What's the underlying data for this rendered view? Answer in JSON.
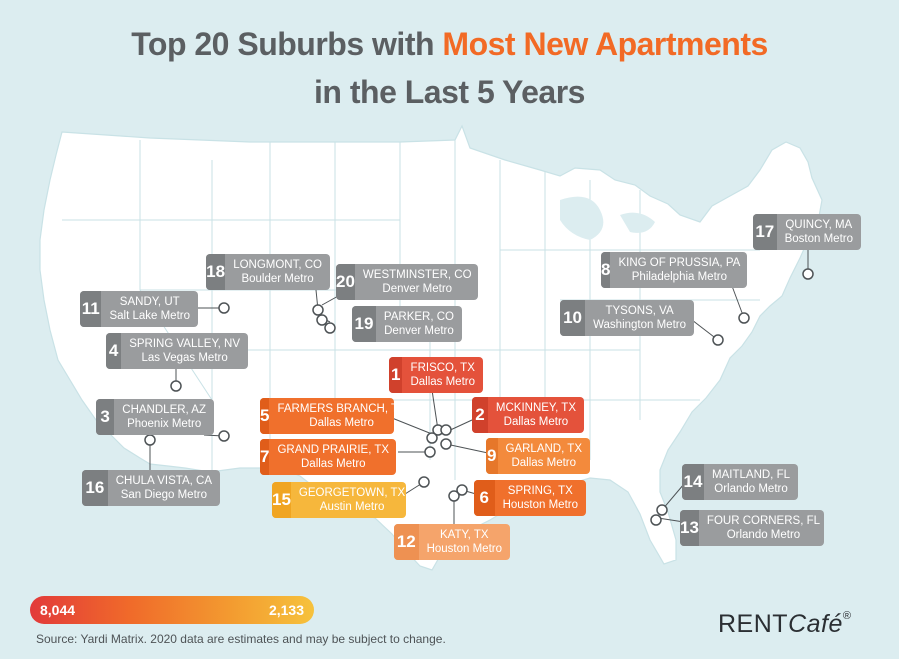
{
  "title": {
    "line1_prefix": "Top 20 Suburbs with ",
    "line1_highlight": "Most New Apartments",
    "line2": "in the Last 5 Years"
  },
  "labels": [
    {
      "rank": "1",
      "city": "FRISCO, TX",
      "metro": "Dallas Metro",
      "tier": "r"
    },
    {
      "rank": "2",
      "city": "MCKINNEY, TX",
      "metro": "Dallas Metro",
      "tier": "r"
    },
    {
      "rank": "3",
      "city": "CHANDLER, AZ",
      "metro": "Phoenix Metro",
      "tier": "g"
    },
    {
      "rank": "4",
      "city": "SPRING VALLEY, NV",
      "metro": "Las Vegas Metro",
      "tier": "g"
    },
    {
      "rank": "5",
      "city": "FARMERS BRANCH, TX",
      "metro": "Dallas Metro",
      "tier": "o"
    },
    {
      "rank": "6",
      "city": "SPRING, TX",
      "metro": "Houston Metro",
      "tier": "o"
    },
    {
      "rank": "7",
      "city": "GRAND PRAIRIE, TX",
      "metro": "Dallas Metro",
      "tier": "o"
    },
    {
      "rank": "8",
      "city": "KING OF PRUSSIA, PA",
      "metro": "Philadelphia Metro",
      "tier": "g"
    },
    {
      "rank": "9",
      "city": "GARLAND, TX",
      "metro": "Dallas Metro",
      "tier": "o2"
    },
    {
      "rank": "10",
      "city": "TYSONS, VA",
      "metro": "Washington Metro",
      "tier": "g"
    },
    {
      "rank": "11",
      "city": "SANDY, UT",
      "metro": "Salt Lake Metro",
      "tier": "g"
    },
    {
      "rank": "12",
      "city": "KATY, TX",
      "metro": "Houston Metro",
      "tier": "o3"
    },
    {
      "rank": "13",
      "city": "FOUR CORNERS, FL",
      "metro": "Orlando Metro",
      "tier": "g"
    },
    {
      "rank": "14",
      "city": "MAITLAND, FL",
      "metro": "Orlando Metro",
      "tier": "g"
    },
    {
      "rank": "15",
      "city": "GEORGETOWN, TX",
      "metro": "Austin Metro",
      "tier": "y"
    },
    {
      "rank": "16",
      "city": "CHULA VISTA, CA",
      "metro": "San Diego Metro",
      "tier": "g"
    },
    {
      "rank": "17",
      "city": "QUINCY, MA",
      "metro": "Boston Metro",
      "tier": "g"
    },
    {
      "rank": "18",
      "city": "LONGMONT, CO",
      "metro": "Boulder Metro",
      "tier": "g"
    },
    {
      "rank": "19",
      "city": "PARKER, CO",
      "metro": "Denver Metro",
      "tier": "g"
    },
    {
      "rank": "20",
      "city": "WESTMINSTER, CO",
      "metro": "Denver Metro",
      "tier": "g"
    }
  ],
  "legend": {
    "max": "8,044",
    "min": "2,133"
  },
  "source": "Source: Yardi Matrix. 2020 data are estimates and may be subject to change.",
  "brand": {
    "rent": "RENT",
    "cafe": "Café",
    "mark": "®"
  },
  "colors": {
    "title_gray": "#5b5f62",
    "title_orange": "#f26a25",
    "land": "#ffffff",
    "water": "#dcedf0",
    "border": "#b9d9df"
  }
}
